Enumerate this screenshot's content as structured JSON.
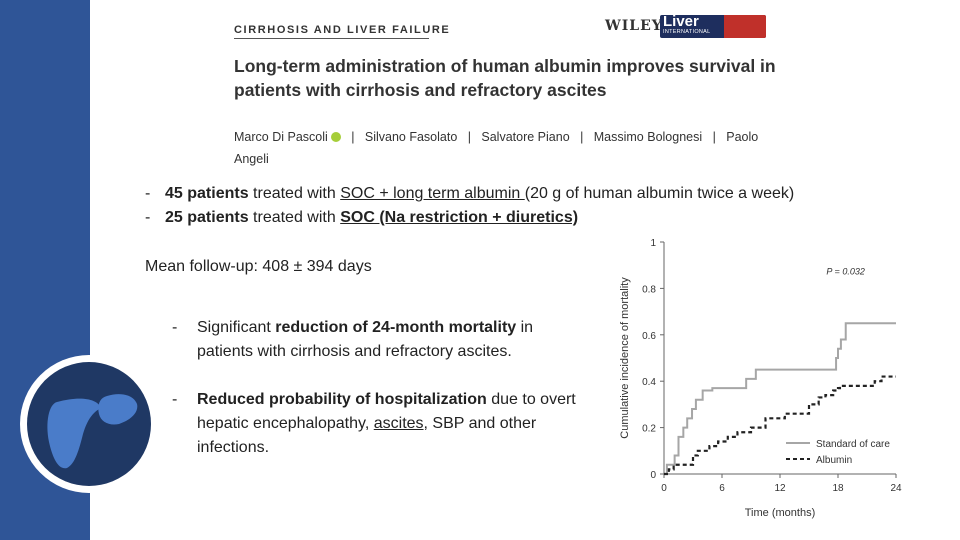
{
  "header": {
    "journal": "CIRRHOSIS AND LIVER FAILURE",
    "publisher": "WILEY",
    "logo_main": "Liver",
    "logo_sub": "INTERNATIONAL"
  },
  "paper": {
    "title": "Long-term administration of human albumin improves survival in patients with cirrhosis and refractory ascites",
    "authors": [
      "Marco Di Pascoli",
      "Silvano Fasolato",
      "Salvatore Piano",
      "Massimo Bolognesi",
      "Paolo Angeli"
    ],
    "separator": "|"
  },
  "bullets": [
    {
      "dash": "-",
      "b1": "45 patients",
      "t1": " treated with ",
      "u1": "SOC + long term albumin ",
      "t2": "(20 g of human albumin twice a week)"
    },
    {
      "dash": "-",
      "b1": "25 patients",
      "t1": " treated with ",
      "u1": "SOC (Na restriction + diuretics)",
      "t2": ""
    }
  ],
  "followup": "Mean follow-up: 408 ± 394 days",
  "findings": [
    {
      "dash": "-",
      "t0": "Significant ",
      "b1": "reduction of 24-month mortality",
      "t1": " in patients with cirrhosis and refractory ascites."
    },
    {
      "dash": "-",
      "b1": "Reduced probability of hospitalization",
      "t1": " due to overt hepatic encephalopathy, ",
      "u1": "ascites",
      "t2": ", SBP and other infections."
    }
  ],
  "chart_data": {
    "type": "line",
    "xlabel": "Time (months)",
    "ylabel": "Cumulative incidence of mortality",
    "xlim": [
      0,
      24
    ],
    "ylim": [
      0,
      1
    ],
    "xticks": [
      0,
      6,
      12,
      18,
      24
    ],
    "yticks": [
      0,
      0.2,
      0.4,
      0.6,
      0.8,
      1
    ],
    "yticklabels": [
      "0",
      "0.2",
      "0.4",
      "0.6",
      "0.8",
      "1"
    ],
    "annotation": "P = 0.032",
    "legend_position": "bottom-right",
    "series": [
      {
        "name": "Standard of care",
        "style": "solid",
        "color": "#a6a6a6",
        "x": [
          0,
          0.3,
          1.1,
          1.5,
          2.0,
          2.4,
          2.9,
          3.3,
          4.0,
          5.0,
          6.5,
          8.5,
          9.5,
          12.5,
          16.0,
          17.8,
          18.0,
          18.3,
          18.8,
          24
        ],
        "y": [
          0,
          0.04,
          0.08,
          0.16,
          0.2,
          0.24,
          0.28,
          0.32,
          0.36,
          0.37,
          0.37,
          0.41,
          0.45,
          0.45,
          0.45,
          0.5,
          0.54,
          0.58,
          0.65,
          0.65
        ]
      },
      {
        "name": "Albumin",
        "style": "dashed",
        "color": "#222222",
        "x": [
          0,
          0.5,
          1.0,
          2.3,
          3.0,
          3.5,
          4.7,
          5.6,
          6.6,
          7.6,
          9.0,
          10.5,
          12.5,
          15.0,
          16.0,
          16.7,
          17.5,
          18.0,
          18.2,
          21.8,
          22.5,
          24
        ],
        "y": [
          0,
          0.02,
          0.04,
          0.04,
          0.08,
          0.1,
          0.12,
          0.14,
          0.16,
          0.18,
          0.2,
          0.24,
          0.26,
          0.3,
          0.33,
          0.34,
          0.36,
          0.37,
          0.38,
          0.4,
          0.42,
          0.42
        ]
      }
    ]
  },
  "colors": {
    "sidebar": "#2f5597",
    "liver_bg": "#1f3864",
    "liver": "#4a7cc9"
  },
  "icons": {
    "liver": "liver-icon",
    "orcid": "orcid-icon"
  }
}
